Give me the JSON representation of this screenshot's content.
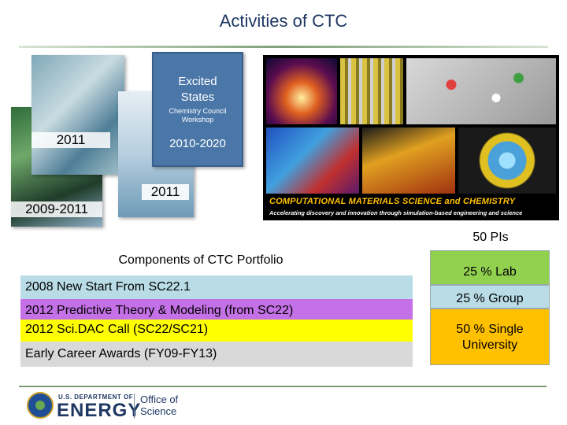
{
  "title": "Activities of CTC",
  "covers": {
    "year_2011_left": "2011",
    "year_2009_2011": "2009-2011",
    "excited_states": "Excited States",
    "chemistry_council_workshop": "Chemistry Council Workshop",
    "year_2010_2020": "2010-2020",
    "year_2011_bottom": "2011"
  },
  "banner": {
    "title": "COMPUTATIONAL MATERIALS SCIENCE and CHEMISTRY",
    "subtitle": "Accelerating discovery and innovation through simulation-based engineering and science"
  },
  "portfolio": {
    "heading": "Components of CTC Portfolio",
    "rows": [
      {
        "label": "2008 New Start From SC22.1",
        "color": "#b9dce6"
      },
      {
        "label": "2012 Predictive Theory & Modeling (from SC22)",
        "color": "#c470e6"
      },
      {
        "label": "2012 Sci.DAC Call (SC22/SC21)",
        "color": "#ffff00"
      },
      {
        "label": "Early Career Awards (FY09-FY13)",
        "color": "#d9d9d9"
      }
    ]
  },
  "pis": {
    "heading": "50 PIs",
    "items": [
      {
        "label": "25 % Lab",
        "color": "#92d050"
      },
      {
        "label": "25 % Group",
        "color": "#b9dce6"
      },
      {
        "label": "50 % Single University",
        "color": "#ffc000"
      }
    ]
  },
  "footer": {
    "doe_small": "U.S. DEPARTMENT OF",
    "doe_big": "ENERGY",
    "office_line1": "Office of",
    "office_line2": "Science"
  }
}
